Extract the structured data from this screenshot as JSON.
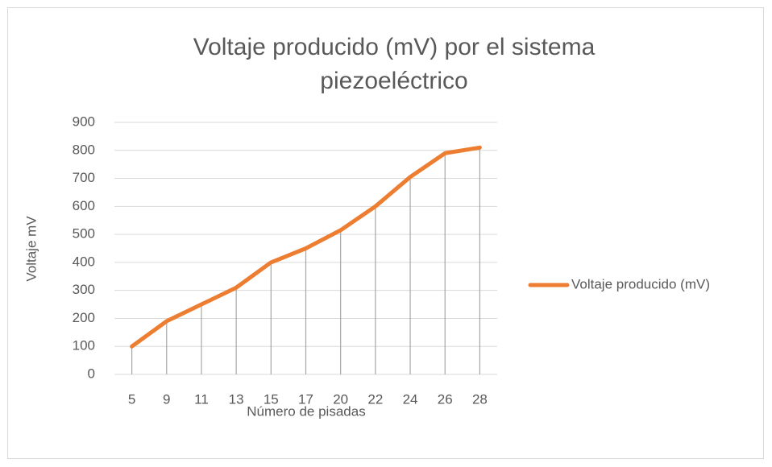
{
  "chart_data": {
    "type": "line",
    "title": "Voltaje producido (mV) por el sistema piezoeléctrico",
    "x_label": "Número de pisadas",
    "y_label": "Voltaje mV",
    "categories": [
      "5",
      "9",
      "11",
      "13",
      "15",
      "17",
      "20",
      "22",
      "24",
      "26",
      "28"
    ],
    "series": [
      {
        "name": "Voltaje producido (mV)",
        "color": "#ed7d31",
        "values": [
          100,
          190,
          250,
          310,
          400,
          450,
          515,
          600,
          705,
          790,
          810
        ]
      }
    ],
    "ylim": [
      0,
      900
    ],
    "yticks": [
      0,
      100,
      200,
      300,
      400,
      500,
      600,
      700,
      800,
      900
    ],
    "grid": true,
    "drop_lines": true,
    "legend": "right"
  }
}
